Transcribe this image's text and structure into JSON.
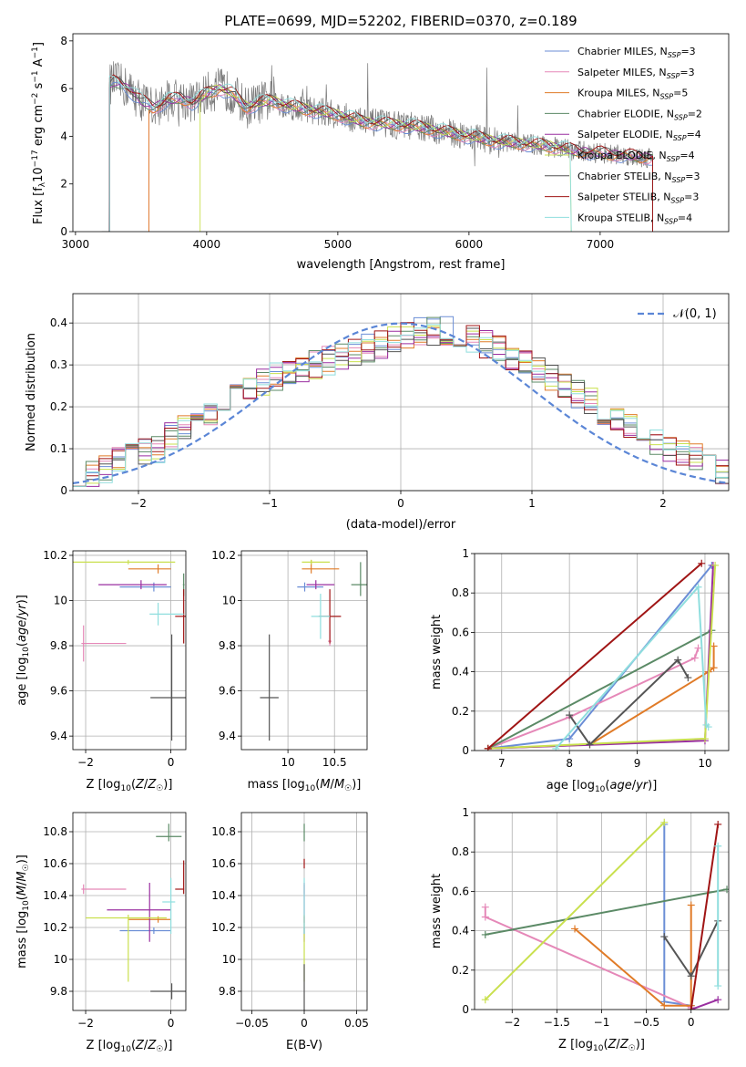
{
  "title": "PLATE=0699, MJD=52202, FIBERID=0370, z=0.189",
  "colors": [
    "#6b8ed6",
    "#e588b8",
    "#e07b28",
    "#5b8a66",
    "#9a2fa0",
    "#c9e04e",
    "#555555",
    "#a01515",
    "#8fdede"
  ],
  "chart_data": [
    {
      "type": "line",
      "xlabel": "wavelength [Angstrom, rest frame]",
      "ylabel": "Flux [f_λ 10^-17 erg cm^-2 s^-1 A^-1]",
      "xlim": [
        2980,
        7980
      ],
      "ylim": [
        0,
        8.3
      ],
      "xticks": [
        3000,
        4000,
        5000,
        6000,
        7000
      ],
      "yticks": [
        0,
        2,
        4,
        6,
        8
      ],
      "grid": false,
      "legend_position": "top-right",
      "continuum": {
        "x": [
          3260,
          3300,
          3400,
          3500,
          3600,
          3700,
          3800,
          3900,
          4000,
          4100,
          4200,
          4300,
          4400,
          4500,
          4600,
          4800,
          5000,
          5200,
          5400,
          5600,
          5800,
          6000,
          6200,
          6400,
          6600,
          6800,
          7000,
          7200,
          7400
        ],
        "y": [
          6.2,
          6.3,
          6.0,
          5.5,
          5.2,
          5.5,
          5.6,
          5.4,
          5.8,
          6.0,
          5.8,
          5.2,
          5.4,
          5.5,
          5.3,
          5.1,
          4.9,
          4.6,
          4.5,
          4.4,
          4.2,
          4.0,
          3.8,
          3.7,
          3.6,
          3.4,
          3.3,
          3.2,
          3.1
        ]
      },
      "series": [
        {
          "name": "Chabrier MILES, N_SSP=3"
        },
        {
          "name": "Salpeter MILES, N_SSP=3"
        },
        {
          "name": "Kroupa MILES, N_SSP=5"
        },
        {
          "name": "Chabrier ELODIE, N_SSP=2"
        },
        {
          "name": "Salpeter ELODIE, N_SSP=4"
        },
        {
          "name": "Kroupa ELODIE, N_SSP=4"
        },
        {
          "name": "Chabrier STELIB, N_SSP=3"
        },
        {
          "name": "Salpeter STELIB, N_SSP=3"
        },
        {
          "name": "Kroupa STELIB, N_SSP=4"
        }
      ]
    },
    {
      "type": "histogram",
      "xlabel": "(data-model)/error",
      "ylabel": "Normed distribution",
      "xlim": [
        -2.5,
        2.5
      ],
      "ylim": [
        0,
        0.47
      ],
      "xticks": [
        -2,
        -1,
        0,
        1,
        2
      ],
      "yticks": [
        0.0,
        0.1,
        0.2,
        0.3,
        0.4
      ],
      "grid": true,
      "legend_position": "top-right",
      "reference_curve": {
        "name": "N(0,1)",
        "mean": 0,
        "sigma": 1
      },
      "bin_width": 0.1,
      "mean_shape": [
        0.03,
        0.04,
        0.05,
        0.07,
        0.08,
        0.09,
        0.1,
        0.13,
        0.15,
        0.17,
        0.19,
        0.2,
        0.22,
        0.24,
        0.26,
        0.27,
        0.28,
        0.29,
        0.3,
        0.31,
        0.32,
        0.33,
        0.34,
        0.35,
        0.36,
        0.37,
        0.38,
        0.38,
        0.38,
        0.37,
        0.36,
        0.35,
        0.34,
        0.32,
        0.31,
        0.29,
        0.27,
        0.25,
        0.23,
        0.21,
        0.19,
        0.17,
        0.15,
        0.13,
        0.12,
        0.1,
        0.09,
        0.08,
        0.07,
        0.05
      ]
    },
    {
      "type": "scatter-errorbar",
      "xlabel": "Z [log10(Z/Z☉)]",
      "ylabel": "age  [log10(age/yr)]",
      "xlim": [
        -2.3,
        0.35
      ],
      "ylim": [
        9.34,
        10.22
      ],
      "xticks": [
        -2,
        0
      ],
      "yticks": [
        9.4,
        9.6,
        9.8,
        10.0,
        10.2
      ],
      "grid": true,
      "points": [
        {
          "x": -0.4,
          "y": 10.06,
          "xl": 0.8,
          "xh": 0.4,
          "yl": 0.02,
          "yh": 0.02
        },
        {
          "x": -2.05,
          "y": 9.81,
          "xl": 0.05,
          "xh": 1.0,
          "yl": 0.08,
          "yh": 0.08
        },
        {
          "x": -0.3,
          "y": 10.14,
          "xl": 0.7,
          "xh": 0.3,
          "yl": 0.02,
          "yh": 0.02
        },
        {
          "x": 0.3,
          "y": 10.07,
          "xl": 0.02,
          "xh": 0.02,
          "yl": 0.05,
          "yh": 0.05
        },
        {
          "x": -0.7,
          "y": 10.07,
          "xl": 1.0,
          "xh": 0.6,
          "yl": 0.02,
          "yh": 0.02
        },
        {
          "x": -1.0,
          "y": 10.17,
          "xl": 1.9,
          "xh": 1.1,
          "yl": 0.01,
          "yh": 0.01
        },
        {
          "x": 0.02,
          "y": 9.57,
          "xl": 0.5,
          "xh": 0.5,
          "yl": 0.19,
          "yh": 0.28
        },
        {
          "x": 0.3,
          "y": 9.93,
          "xl": 0.2,
          "xh": 0.1,
          "yl": 0.12,
          "yh": 0.12
        },
        {
          "x": -0.3,
          "y": 9.94,
          "xl": 0.2,
          "xh": 0.6,
          "yl": 0.05,
          "yh": 0.05
        }
      ]
    },
    {
      "type": "scatter-errorbar",
      "xlabel": "mass [log10(M/M☉)]",
      "ylabel": "",
      "xlim": [
        9.5,
        10.85
      ],
      "ylim": [
        9.34,
        10.22
      ],
      "xticks": [
        10.0,
        10.5
      ],
      "yticks": [
        9.4,
        9.6,
        9.8,
        10.0,
        10.2
      ],
      "grid": true,
      "points": [
        {
          "x": 10.18,
          "y": 10.06,
          "xl": 0.08,
          "xh": 0.2,
          "yl": 0.02,
          "yh": 0.02
        },
        {
          "x": 10.45,
          "y": 9.82,
          "xl": 0.02,
          "xh": 0.02,
          "yl": 0.02,
          "yh": 0.05
        },
        {
          "x": 10.25,
          "y": 10.14,
          "xl": 0.1,
          "xh": 0.3,
          "yl": 0.02,
          "yh": 0.04
        },
        {
          "x": 10.78,
          "y": 10.07,
          "xl": 0.1,
          "xh": 0.1,
          "yl": 0.05,
          "yh": 0.1
        },
        {
          "x": 10.3,
          "y": 10.07,
          "xl": 0.1,
          "xh": 0.2,
          "yl": 0.02,
          "yh": 0.02
        },
        {
          "x": 10.25,
          "y": 10.17,
          "xl": 0.1,
          "xh": 0.2,
          "yl": 0.01,
          "yh": 0.01
        },
        {
          "x": 9.8,
          "y": 9.57,
          "xl": 0.1,
          "xh": 0.1,
          "yl": 0.19,
          "yh": 0.28
        },
        {
          "x": 10.45,
          "y": 9.93,
          "xl": 0.12,
          "xh": 0.12,
          "yl": 0.12,
          "yh": 0.12
        },
        {
          "x": 10.35,
          "y": 9.93,
          "xl": 0.1,
          "xh": 0.1,
          "yl": 0.1,
          "yh": 0.1
        }
      ]
    },
    {
      "type": "line",
      "xlabel": "age  [log10(age/yr)]",
      "ylabel": "mass weight",
      "xlim": [
        6.6,
        10.35
      ],
      "ylim": [
        0,
        1.0
      ],
      "xticks": [
        7,
        8,
        9,
        10
      ],
      "yticks": [
        0.0,
        0.2,
        0.4,
        0.6,
        0.8,
        1.0
      ],
      "grid": true,
      "series": [
        {
          "x": [
            6.8,
            8.0,
            10.1
          ],
          "y": [
            0.01,
            0.06,
            0.94
          ]
        },
        {
          "x": [
            6.8,
            8.0,
            9.85,
            9.9
          ],
          "y": [
            0.01,
            0.17,
            0.47,
            0.52
          ]
        },
        {
          "x": [
            6.8,
            8.3,
            10.05,
            10.13,
            10.13
          ],
          "y": [
            0.01,
            0.03,
            0.4,
            0.42,
            0.53
          ]
        },
        {
          "x": [
            6.8,
            10.1
          ],
          "y": [
            0.01,
            0.61
          ]
        },
        {
          "x": [
            6.8,
            10.0,
            10.12
          ],
          "y": [
            0.01,
            0.05,
            0.94
          ]
        },
        {
          "x": [
            6.8,
            10.0,
            10.15
          ],
          "y": [
            0.01,
            0.06,
            0.94
          ]
        },
        {
          "x": [
            8.0,
            8.3,
            9.6,
            9.75
          ],
          "y": [
            0.18,
            0.03,
            0.46,
            0.37
          ]
        },
        {
          "x": [
            6.8,
            9.95
          ],
          "y": [
            0.01,
            0.95
          ]
        },
        {
          "x": [
            7.8,
            9.9,
            10.02,
            10.05
          ],
          "y": [
            0.01,
            0.83,
            0.13,
            0.12
          ]
        }
      ]
    },
    {
      "type": "scatter-errorbar",
      "xlabel": "Z [log10(Z/Z☉)]",
      "ylabel": "mass [log10(M/M☉)]",
      "xlim": [
        -2.3,
        0.35
      ],
      "ylim": [
        9.68,
        10.92
      ],
      "xticks": [
        -2,
        0
      ],
      "yticks": [
        9.8,
        10.0,
        10.2,
        10.4,
        10.6,
        10.8
      ],
      "grid": true,
      "points": [
        {
          "x": -0.4,
          "y": 10.18,
          "xl": 0.8,
          "xh": 0.4,
          "yl": 0.02,
          "yh": 0.02
        },
        {
          "x": -2.05,
          "y": 10.44,
          "xl": 0.05,
          "xh": 1.0,
          "yl": 0.03,
          "yh": 0.03
        },
        {
          "x": -0.3,
          "y": 10.25,
          "xl": 0.7,
          "xh": 0.3,
          "yl": 0.02,
          "yh": 0.02
        },
        {
          "x": -0.05,
          "y": 10.77,
          "xl": 0.3,
          "xh": 0.3,
          "yl": 0.03,
          "yh": 0.08
        },
        {
          "x": -0.5,
          "y": 10.31,
          "xl": 1.0,
          "xh": 0.5,
          "yl": 0.2,
          "yh": 0.17
        },
        {
          "x": -1.0,
          "y": 10.26,
          "xl": 1.0,
          "xh": 0.9,
          "yl": 0.4,
          "yh": 0.02
        },
        {
          "x": 0.02,
          "y": 9.8,
          "xl": 0.5,
          "xh": 0.5,
          "yl": 0.05,
          "yh": 0.05
        },
        {
          "x": 0.3,
          "y": 10.44,
          "xl": 0.2,
          "xh": 0.01,
          "yl": 0.03,
          "yh": 0.18
        },
        {
          "x": 0.0,
          "y": 10.36,
          "xl": 0.2,
          "xh": 0.1,
          "yl": 0.2,
          "yh": 0.15
        }
      ]
    },
    {
      "type": "scatter-errorbar",
      "xlabel": "E(B-V)",
      "ylabel": "",
      "xlim": [
        -0.06,
        0.06
      ],
      "ylim": [
        9.68,
        10.92
      ],
      "xticks": [
        -0.05,
        0.0,
        0.05
      ],
      "yticks": [
        9.8,
        10.0,
        10.2,
        10.4,
        10.6,
        10.8
      ],
      "grid": true,
      "points": [
        {
          "x": 0,
          "y": 10.18,
          "xl": 0,
          "xh": 0,
          "yl": 0.02,
          "yh": 0.02
        },
        {
          "x": 0,
          "y": 10.44,
          "xl": 0,
          "xh": 0,
          "yl": 0.03,
          "yh": 0.03
        },
        {
          "x": 0,
          "y": 10.25,
          "xl": 0,
          "xh": 0,
          "yl": 0.02,
          "yh": 0.02
        },
        {
          "x": 0,
          "y": 10.77,
          "xl": 0,
          "xh": 0,
          "yl": 0.03,
          "yh": 0.08
        },
        {
          "x": 0,
          "y": 10.31,
          "xl": 0,
          "xh": 0,
          "yl": 0.2,
          "yh": 0.17
        },
        {
          "x": 0,
          "y": 10.26,
          "xl": 0,
          "xh": 0,
          "yl": 0.4,
          "yh": 0.02
        },
        {
          "x": 0,
          "y": 9.8,
          "xl": 0,
          "xh": 0,
          "yl": 0.12,
          "yh": 0.17
        },
        {
          "x": 0,
          "y": 10.6,
          "xl": 0,
          "xh": 0,
          "yl": 0.03,
          "yh": 0.03
        },
        {
          "x": 0,
          "y": 10.36,
          "xl": 0,
          "xh": 0,
          "yl": 0.2,
          "yh": 0.15
        }
      ]
    },
    {
      "type": "line",
      "xlabel": "Z [log10(Z/Z☉)]",
      "ylabel": "mass weight",
      "xlim": [
        -2.42,
        0.42
      ],
      "ylim": [
        0,
        1.0
      ],
      "xticks": [
        -2.0,
        -1.5,
        -1.0,
        -0.5,
        0.0
      ],
      "yticks": [
        0.0,
        0.2,
        0.4,
        0.6,
        0.8,
        1.0
      ],
      "grid": true,
      "series": [
        {
          "x": [
            -0.3,
            -0.3,
            0.0
          ],
          "y": [
            0.94,
            0.04,
            0.02
          ]
        },
        {
          "x": [
            -2.3,
            -2.3,
            0.0
          ],
          "y": [
            0.52,
            0.47,
            0.01
          ]
        },
        {
          "x": [
            -1.3,
            -0.3,
            0.0,
            0.0
          ],
          "y": [
            0.41,
            0.02,
            0.02,
            0.53
          ]
        },
        {
          "x": [
            -2.3,
            0.4
          ],
          "y": [
            0.38,
            0.61
          ]
        },
        {
          "x": [
            0.0,
            0.3
          ],
          "y": [
            0.0,
            0.05
          ]
        },
        {
          "x": [
            -2.3,
            -0.3
          ],
          "y": [
            0.05,
            0.95
          ]
        },
        {
          "x": [
            -0.3,
            0.0,
            0.3
          ],
          "y": [
            0.37,
            0.17,
            0.45
          ]
        },
        {
          "x": [
            0.0,
            0.3
          ],
          "y": [
            0.0,
            0.94
          ]
        },
        {
          "x": [
            0.3,
            0.3
          ],
          "y": [
            0.83,
            0.12
          ]
        }
      ]
    }
  ]
}
